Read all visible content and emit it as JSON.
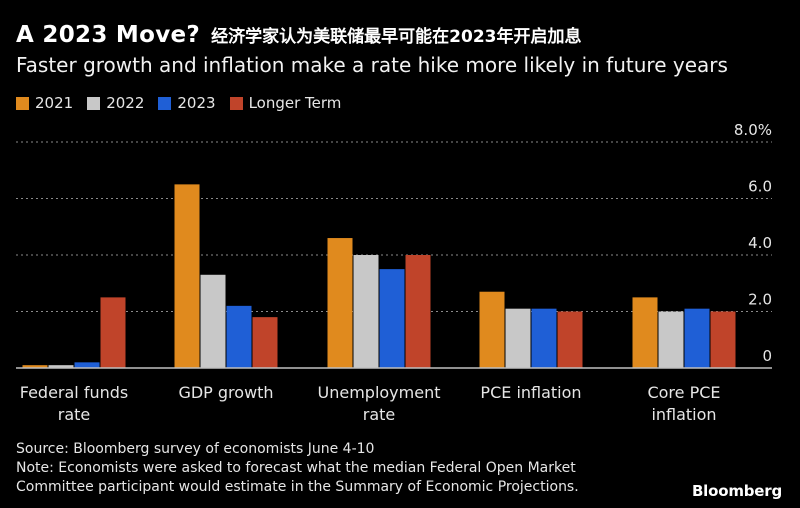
{
  "header": {
    "title_en": "A 2023 Move?",
    "title_zh": "经济学家认为美联储最早可能在2023年开启加息",
    "subtitle": "Faster growth and inflation make a rate hike more likely in future years"
  },
  "footer": {
    "source": "Source: Bloomberg survey of economists June 4-10",
    "note_line1": "Note: Economists were asked to forecast what the median Federal Open Market",
    "note_line2": "Committee participant would estimate in the Summary of Economic Projections.",
    "logo": "Bloomberg"
  },
  "chart_data": {
    "type": "bar",
    "categories": [
      [
        "Federal funds",
        "rate"
      ],
      [
        "GDP growth"
      ],
      [
        "Unemployment",
        "rate"
      ],
      [
        "PCE inflation"
      ],
      [
        "Core PCE",
        "inflation"
      ]
    ],
    "series": [
      {
        "name": "2021",
        "color": "#e08a1e",
        "values": [
          0.1,
          6.5,
          4.6,
          2.7,
          2.5
        ]
      },
      {
        "name": "2022",
        "color": "#c8c8c8",
        "values": [
          0.1,
          3.3,
          4.0,
          2.1,
          2.0
        ]
      },
      {
        "name": "2023",
        "color": "#1f5fd6",
        "values": [
          0.2,
          2.2,
          3.5,
          2.1,
          2.1
        ]
      },
      {
        "name": "Longer Term",
        "color": "#c0442a",
        "values": [
          2.5,
          1.8,
          4.0,
          2.0,
          2.0
        ]
      }
    ],
    "yticks": [
      {
        "value": 8,
        "label": "8.0%"
      },
      {
        "value": 6,
        "label": "6.0"
      },
      {
        "value": 4,
        "label": "4.0"
      },
      {
        "value": 2,
        "label": "2.0"
      },
      {
        "value": 0,
        "label": "0"
      }
    ],
    "ylim": [
      0,
      8
    ],
    "grid": true,
    "legend_position": "top-left"
  }
}
